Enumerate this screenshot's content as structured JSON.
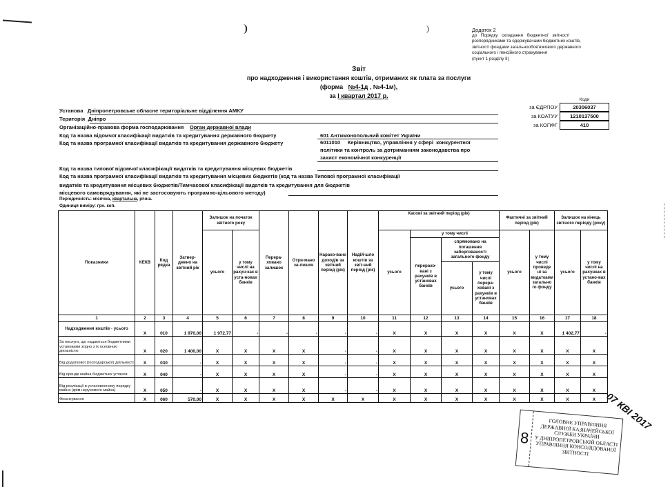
{
  "appendix": {
    "title": "Додаток 2",
    "lines": [
      "до Порядку складання бюджетної звітності",
      "розпорядниками та одержувачами бюджетних коштів,",
      "звітності фондами загальнообов'язкового державного",
      "соціального і пенсійного страхування",
      "(пункт 1 розділу II)"
    ]
  },
  "report": {
    "title": "Звіт",
    "subtitle": "про надходження і використання коштів, отриманих як плата за послуги",
    "form_prefix": "(форма",
    "form_selected": "№4-1д",
    "form_suffix": ", №4-1м),",
    "period_prefix": "за",
    "period": "І квартал 2017 р."
  },
  "codes": {
    "header": "Коди",
    "rows": [
      {
        "label": "за ЄДРПОУ",
        "value": "20306037"
      },
      {
        "label": "за КОАТУУ",
        "value": "1210137500"
      },
      {
        "label": "за КОПФГ",
        "value": "410"
      }
    ]
  },
  "fields": {
    "institution_label": "Установа",
    "institution": "Дніпропетровське обласне територіальне відділення АМКУ",
    "territory_label": "Територія",
    "territory": "Дніпро",
    "org_form_label": "Організаційно-правова форма господарювання",
    "org_form": "Орган державної влади",
    "dept_class_label": "Код та назва відомчої класифікації видатків та кредитування державного бюджету",
    "dept_class": "601 Антимонопольний комітет України",
    "prog_class_label": "Код та назва програмної класифікації видатків та кредитування державного бюджету",
    "prog_class": [
      "6011010     Керівництво, управління у сфері  конкурентної",
      "політики та контроль за дотриманням законодавства про",
      "захист економічної конкуренції"
    ],
    "local_dept_label": "Код та назва типової відомчої класифікації видатків та кредитування місцевих бюджетів",
    "local_prog_label": [
      "Код та назва програмної класифікації видатків та кредитування місцевих бюджетів (код та назва Типової програмної класифікації",
      "видатків та кредитування місцевих бюджетів/Тимчасової класифікації  видатків та кредитування для бюджетів",
      "місцевого самоврядування, які не застосовують програмно-цільового методу)"
    ],
    "periodicity_label": "Періодичність: місячна,",
    "periodicity_selected": "квартальна",
    "periodicity_rest": ", річна.",
    "unit": "Одиниця виміру: грн. коп."
  },
  "table": {
    "headers": {
      "indicators": "Показники",
      "kekv": "КЕКВ",
      "row_code": "Код рядка",
      "approved": "Затвер-дженo на звітний рік",
      "balance_start": "Залишок на початок звітного року",
      "total": "усього",
      "incl_banks": "у тому числі на рахун-ках в уста-новах банків",
      "transferred": "Перера-ховано залишок",
      "received": "Отри-мано за-лишок",
      "accrued": "Нарахо-вано доходів за звітний період (рік)",
      "income": "Надій-шло коштів за звіт-ний період (рік)",
      "cash": "Касові за звітний період (рік)",
      "incl": "у тому числі",
      "transferred_banks": "перерахо-вані з рахунків в установах банків",
      "debt": "спрямовано на погашення заборгованості загального фонду",
      "incl_transferred": "у тому числі перера-ховані з рахунків в установах банків",
      "actual": "Фактичні за звітний період (рік)",
      "incl_general": "у тому числі проведе ні за видатками загально го фонду",
      "balance_end": "Залишок на кінець звітного періоду (року)",
      "incl_banks_end": "у тому числі на рахунках в устано-вах банків"
    },
    "column_numbers": [
      "1",
      "2",
      "3",
      "4",
      "5",
      "6",
      "7",
      "8",
      "9",
      "10",
      "11",
      "12",
      "13",
      "14",
      "15",
      "16",
      "17",
      "18"
    ],
    "rows": [
      {
        "label": "Надходження коштів - усього",
        "cells": [
          "X",
          "010",
          "1 970,00",
          "1 972,77",
          "-",
          "-",
          "-",
          "-",
          "-",
          "X",
          "X",
          "X",
          "X",
          "X",
          "X",
          "1 402,77",
          "-"
        ]
      },
      {
        "label": "За послуги, що надаються бюджетними установами згідно з їх основною діяльністю",
        "cells": [
          "X",
          "020",
          "1 400,00",
          "X",
          "X",
          "X",
          "X",
          "-",
          "-",
          "X",
          "X",
          "X",
          "X",
          "X",
          "X",
          "X",
          "X"
        ]
      },
      {
        "label": "Від додаткової (господарської) діяльності",
        "cells": [
          "X",
          "030",
          "-",
          "X",
          "X",
          "X",
          "X",
          "-",
          "-",
          "X",
          "X",
          "X",
          "X",
          "X",
          "X",
          "X",
          "X"
        ]
      },
      {
        "label": "Від оренди майна бюджетних установ",
        "cells": [
          "X",
          "040",
          "-",
          "X",
          "X",
          "X",
          "X",
          "-",
          "-",
          "X",
          "X",
          "X",
          "X",
          "X",
          "X",
          "X",
          "X"
        ]
      },
      {
        "label": "Від реалізації в установленому порядку майна (крім нерухомого майна)",
        "cells": [
          "X",
          "050",
          "-",
          "X",
          "X",
          "X",
          "X",
          "-",
          "-",
          "X",
          "X",
          "X",
          "X",
          "X",
          "X",
          "X",
          "X"
        ]
      },
      {
        "label": "Фінансування",
        "cells": [
          "X",
          "060",
          "570,00",
          "X",
          "X",
          "X",
          "X",
          "X",
          "X",
          "X",
          "X",
          "X",
          "X",
          "X",
          "X",
          "X",
          "X"
        ]
      }
    ]
  },
  "stamp": {
    "number": "8",
    "lines": [
      "ГОЛОВНЕ УПРАВЛІННЯ",
      "ДЕРЖАВНОЇ КАЗНАЧЕЙСЬКОЇ",
      "СЛУЖБИ УКРАЇНИ",
      "У ДНІПРОПЕТРОВСЬКІЙ ОБЛАСТІ",
      "УПРАВЛІННЯ КОНСОЛІДОВАНОЇ",
      "ЗВІТНОСТІ"
    ],
    "date": "07 КВІ 2017"
  }
}
